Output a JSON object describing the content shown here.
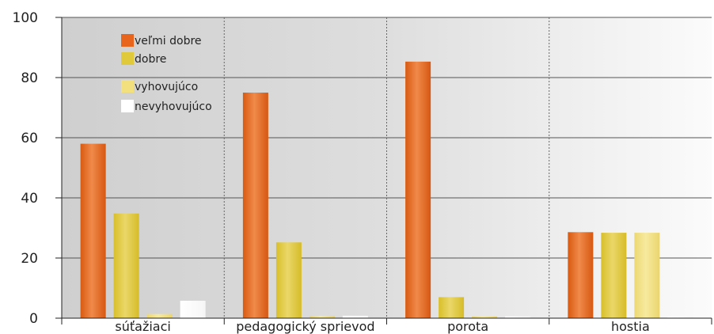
{
  "chart_data": {
    "type": "bar",
    "categories": [
      "súťažiaci",
      "pedagogický sprievod",
      "porota",
      "hostia"
    ],
    "series": [
      {
        "name": "veľmi dobre",
        "values": [
          58,
          75,
          85.3,
          28.6
        ]
      },
      {
        "name": "dobre",
        "values": [
          34.8,
          25.2,
          7,
          28.4
        ]
      },
      {
        "name": "vyhovujúco",
        "values": [
          1.4,
          0.8,
          0.6,
          28.4
        ]
      },
      {
        "name": "nevyhovujúco",
        "values": [
          5.8,
          0.8,
          0.6,
          0.6
        ]
      }
    ],
    "ylim": [
      0,
      100
    ],
    "yticks": [
      0,
      20,
      40,
      60,
      80,
      100
    ],
    "grid": true,
    "legend": "top-left"
  },
  "colors": {
    "veľmi dobre": "#e8641c",
    "dobre": "#e0c93a",
    "vyhovujúco": "#f2df7e",
    "nevyhovujúco": "#ffffff"
  }
}
